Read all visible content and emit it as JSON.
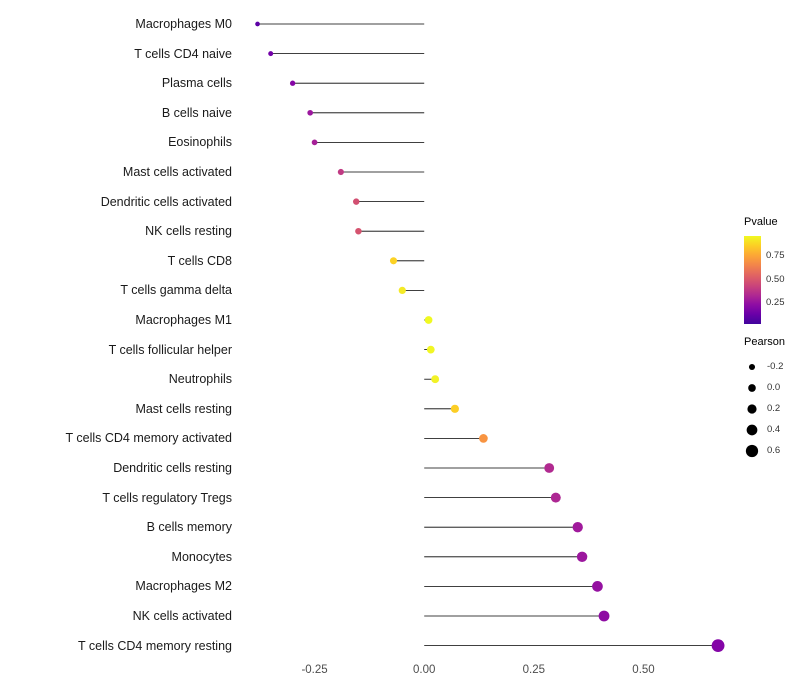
{
  "figure": {
    "background": "#ffffff"
  },
  "chart_data": {
    "type": "scatter",
    "variant": "lollipop",
    "title": "",
    "xlabel": "",
    "ylabel": "",
    "grid": false,
    "legend_position": "right",
    "xlim": [
      -0.42,
      0.72
    ],
    "x_tick_values": [
      -0.25,
      0,
      0.25,
      0.5
    ],
    "x_tick_labels": [
      "-0.25",
      "0.00",
      "0.25",
      "0.50"
    ],
    "categories": [
      "Macrophages M0",
      "T cells CD4 naive",
      "Plasma cells",
      "B cells naive",
      "Eosinophils",
      "Mast cells activated",
      "Dendritic cells activated",
      "NK cells resting",
      "T cells CD8",
      "T cells gamma delta",
      "Macrophages M1",
      "T cells follicular helper",
      "Neutrophils",
      "Mast cells resting",
      "T cells CD4 memory activated",
      "Dendritic cells resting",
      "T cells regulatory  Tregs",
      "B cells memory",
      "Monocytes",
      "Macrophages M2",
      "NK cells activated",
      "T cells CD4 memory resting"
    ],
    "series": [
      {
        "name": "Pearson",
        "values": [
          -0.38,
          -0.35,
          -0.3,
          -0.26,
          -0.25,
          -0.19,
          -0.155,
          -0.15,
          -0.07,
          -0.05,
          0.01,
          0.015,
          0.025,
          0.07,
          0.135,
          0.285,
          0.3,
          0.35,
          0.36,
          0.395,
          0.41,
          0.67
        ]
      }
    ],
    "pvalues": [
      0.08,
      0.11,
      0.14,
      0.2,
      0.23,
      0.32,
      0.4,
      0.41,
      0.88,
      0.92,
      0.97,
      0.95,
      0.94,
      0.9,
      0.78,
      0.25,
      0.24,
      0.17,
      0.16,
      0.13,
      0.1,
      0.04
    ],
    "point_colors": [
      "#5c01a6",
      "#7301a8",
      "#8606a6",
      "#9c179e",
      "#a62098",
      "#c03a83",
      "#d24f71",
      "#d5536f",
      "#fcd225",
      "#f4ea27",
      "#f0f921",
      "#f1f624",
      "#f2f227",
      "#fcce25",
      "#f89441",
      "#b12a90",
      "#ad2793",
      "#a01a9c",
      "#9c179e",
      "#9511a1",
      "#8e0ca3",
      "#8405a7"
    ],
    "stem_color": "#000000",
    "legend_pvalue": {
      "title": "Pvalue",
      "tick_labels": [
        "0.75",
        "0.50",
        "0.25"
      ],
      "tick_values": [
        0.75,
        0.5,
        0.25
      ],
      "bar_range": [
        0.02,
        0.97
      ],
      "gradient_top_to_bottom": [
        "#f0f921",
        "#fcce25",
        "#fca636",
        "#f2844b",
        "#e16462",
        "#cc4778",
        "#b12a90",
        "#8f0da4",
        "#6a00a8",
        "#41049d"
      ]
    },
    "legend_pearson": {
      "title": "Pearson",
      "dot_color": "#000000",
      "items": [
        {
          "label": "-0.2",
          "value": -0.2
        },
        {
          "label": "0.0",
          "value": 0
        },
        {
          "label": "0.2",
          "value": 0.2
        },
        {
          "label": "0.4",
          "value": 0.4
        },
        {
          "label": "0.6",
          "value": 0.6
        }
      ]
    }
  }
}
